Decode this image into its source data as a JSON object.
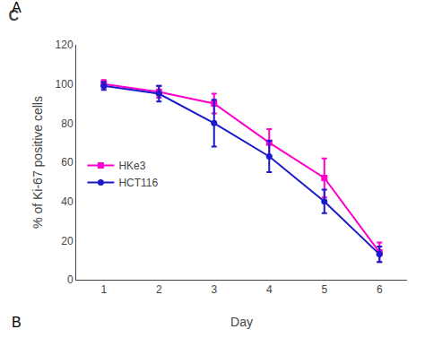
{
  "chart_data": {
    "type": "line",
    "title": "C",
    "xlabel": "Day",
    "ylabel": "% of Ki-67 positive cells",
    "x": [
      1,
      2,
      3,
      4,
      5,
      6
    ],
    "series": [
      {
        "name": "HKe3",
        "color": "#ff00cc",
        "marker": "square",
        "values": [
          100,
          96,
          90,
          70,
          52,
          14
        ],
        "errors": [
          2,
          3,
          5,
          7,
          10,
          5
        ]
      },
      {
        "name": "HCT116",
        "color": "#1a1acc",
        "marker": "circle",
        "values": [
          99,
          95,
          80,
          63,
          40,
          13
        ],
        "errors": [
          2,
          4,
          12,
          8,
          6,
          4
        ]
      }
    ],
    "xlim": [
      0.5,
      6.5
    ],
    "xticks": [
      1,
      2,
      3,
      4,
      5,
      6
    ],
    "ylim": [
      0,
      120
    ],
    "yticks": [
      0,
      20,
      40,
      60,
      80,
      100,
      120
    ],
    "grid": false,
    "legend": "left",
    "annotations": [
      "A",
      "B"
    ]
  }
}
